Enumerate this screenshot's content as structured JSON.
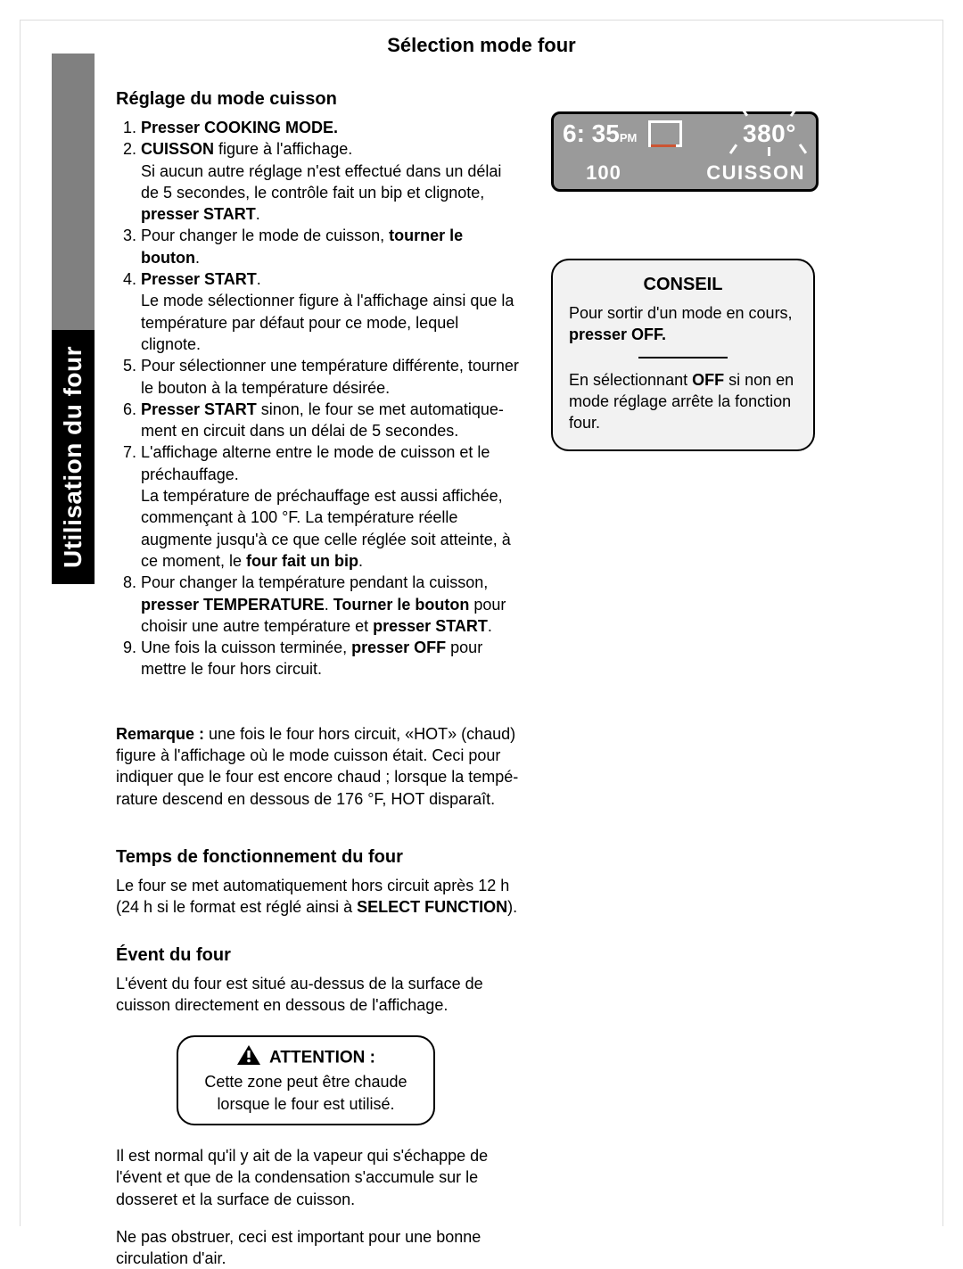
{
  "sidebar_label": "Utilisation du four",
  "page_title": "Sélection mode four",
  "section1": {
    "heading": "Réglage du mode cuisson",
    "steps_html": [
      "<span class='b'>Presser COOKING MODE.</span>",
      "<span class='b'>CUISSON</span> figure à l'affichage.<br>Si aucun autre réglage n'est effectué dans un délai de 5 secondes, le contrôle fait un bip et clignote, <span class='b'>presser START</span>.",
      "Pour changer le mode de cuisson, <span class='b'>tourner le bouton</span>.",
      "<span class='b'>Presser START</span>.<br>Le mode sélectionner figure à l'affichage ainsi que la température par défaut pour ce mode, lequel clignote.",
      "Pour sélectionner une température différente, tourner le bouton à la température désirée.",
      "<span class='b'>Presser START</span> sinon, le four se met automatique-ment en circuit dans un délai de 5 secondes.",
      "L'affichage alterne entre le mode de cuisson et le préchauffage.<br>La température de préchauffage est aussi affichée, commençant à 100 °F. La température réelle augmente jusqu'à ce que celle réglée soit atteinte, à ce moment, le <span class='b'>four fait un bip</span>.",
      "Pour changer la température pendant la cuisson, <span class='b'>presser TEMPERATURE</span>. <span class='b'>Tourner le bouton</span> pour choisir une autre température et <span class='b'>presser START</span>.",
      "Une fois la cuisson terminée, <span class='b'>presser OFF</span> pour mettre le four hors circuit."
    ],
    "remark_html": "<span class='b'>Remarque :</span> une fois le four hors circuit, «HOT» (chaud) figure à l'affichage où le mode cuisson était. Ceci pour indiquer que le four est encore chaud ; lorsque la tempé-rature descend en dessous de  176 °F, HOT disparaît."
  },
  "section2": {
    "heading": "Temps de fonctionnement du four",
    "body_html": "Le four se met automatiquement hors circuit après 12 h (24 h si le format est réglé ainsi à <span class='b'>SELECT FUNCTION</span>)."
  },
  "section3": {
    "heading": "Évent du four",
    "body1": "L'évent du four est situé au-dessus de la surface de cuisson directement en dessous de l'affichage.",
    "attention_title": "ATTENTION :",
    "attention_body": "Cette zone peut être chaude lorsque le four est utilisé.",
    "body2": "Il est normal qu'il y ait de la vapeur qui s'échappe de l'évent et que de la condensation s'accumule sur le dosseret et la surface de cuisson.",
    "body3": "Ne pas obstruer, ceci est important pour une bonne circulation d'air."
  },
  "display": {
    "time": "6: 35",
    "ampm": "PM",
    "temp": "380°",
    "preheat": "100",
    "mode": "CUISSON",
    "bg_color": "#9a9a9a",
    "text_color": "#ffffff",
    "accent_color": "#cc5533"
  },
  "conseil": {
    "title": "CONSEIL",
    "p1_html": "Pour sortir d'un mode en cours, <span class='b'>presser OFF.</span>",
    "p2_html": "En sélectionnant <span class='b'>OFF</span> si non en  mode réglage arrête la fonction four."
  },
  "colors": {
    "text": "#000000",
    "background": "#ffffff",
    "sidebar_gray": "#808080",
    "sidebar_black": "#000000",
    "conseil_bg": "#f2f2f2"
  }
}
